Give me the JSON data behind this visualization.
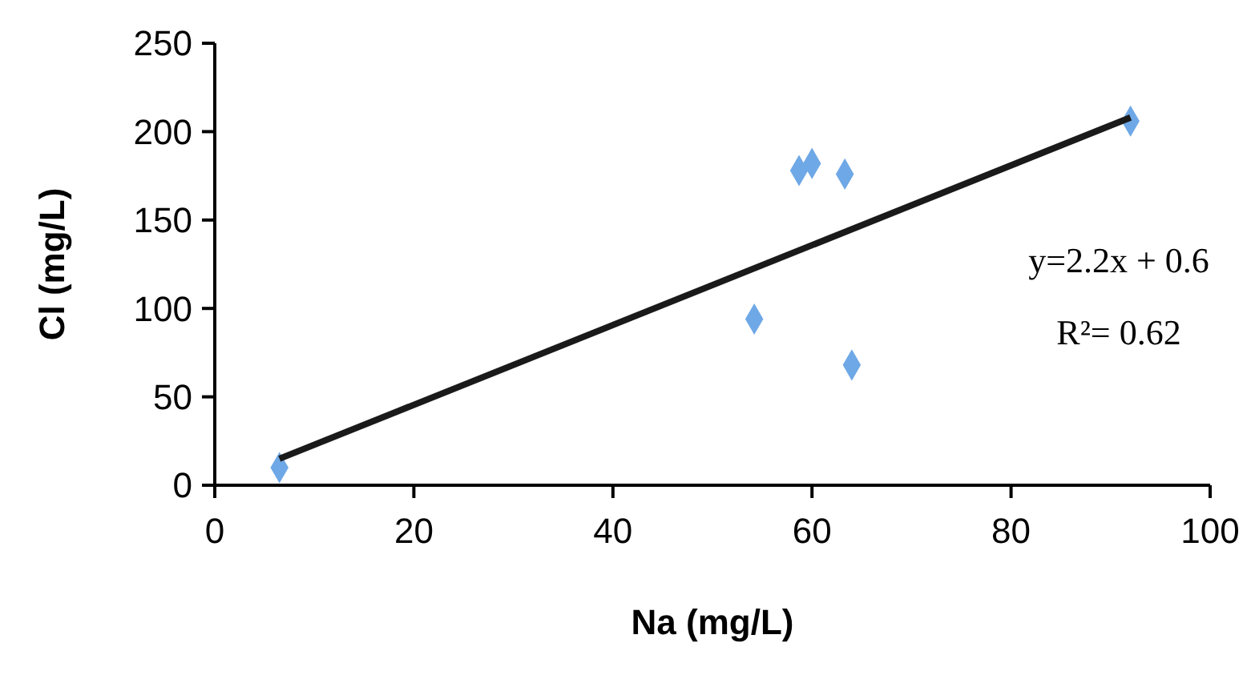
{
  "chart_data": {
    "type": "scatter",
    "xlabel": "Na (mg/L)",
    "ylabel": "Cl (mg/L)",
    "xlim": [
      0,
      100
    ],
    "xticks": [
      0,
      20,
      40,
      60,
      80,
      100
    ],
    "ylim": [
      0,
      250
    ],
    "yticks": [
      0,
      50,
      100,
      150,
      200,
      250
    ],
    "grid": false,
    "series": [
      {
        "marker": "diamond",
        "color": "#6ea8e6",
        "x": [
          6.5,
          58.7,
          60,
          63.3,
          54.2,
          64,
          92
        ],
        "values": [
          10,
          178,
          182,
          176,
          94,
          68,
          206
        ]
      },
      {
        "type": "line",
        "color": "#1a1a1a",
        "x": [
          6.5,
          92
        ],
        "values": [
          15,
          208
        ]
      }
    ],
    "annotations": [
      "y=2.2x + 0.6",
      "R²= 0.62"
    ]
  }
}
